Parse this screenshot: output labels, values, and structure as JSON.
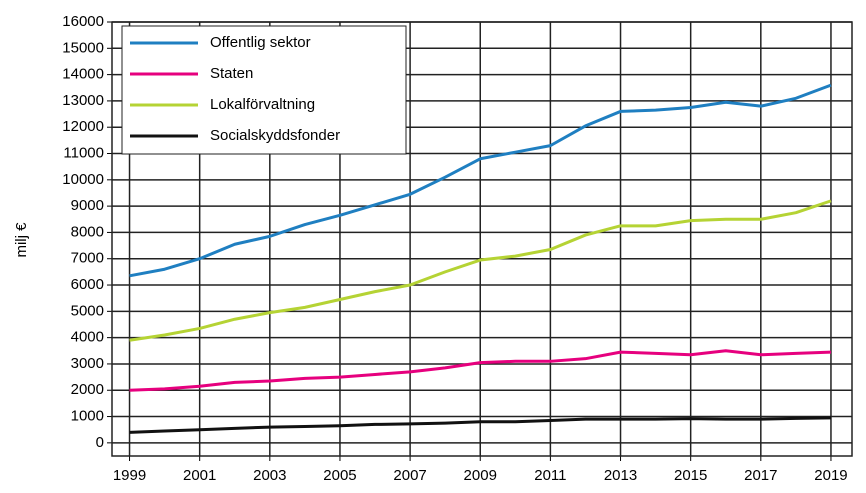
{
  "chart_data": {
    "type": "line",
    "y_label": "milj €",
    "x": [
      1999,
      2000,
      2001,
      2002,
      2003,
      2004,
      2005,
      2006,
      2007,
      2008,
      2009,
      2010,
      2011,
      2012,
      2013,
      2014,
      2015,
      2016,
      2017,
      2018,
      2019
    ],
    "series": [
      {
        "name": "Offentlig sektor",
        "color": "#1f7fc1",
        "values": [
          6350,
          6600,
          7000,
          7550,
          7850,
          8300,
          8650,
          9050,
          9450,
          10100,
          10800,
          11050,
          11300,
          12050,
          12600,
          12650,
          12750,
          12950,
          12800,
          13100,
          13600
        ]
      },
      {
        "name": "Staten",
        "color": "#e6007e",
        "values": [
          2000,
          2050,
          2150,
          2300,
          2350,
          2450,
          2500,
          2600,
          2700,
          2850,
          3050,
          3100,
          3100,
          3200,
          3450,
          3400,
          3350,
          3500,
          3350,
          3400,
          3450
        ]
      },
      {
        "name": "Lokalförvaltning",
        "color": "#b5d334",
        "values": [
          3900,
          4100,
          4350,
          4700,
          4950,
          5150,
          5450,
          5750,
          6000,
          6500,
          6950,
          7100,
          7350,
          7900,
          8250,
          8250,
          8450,
          8500,
          8500,
          8750,
          9200
        ]
      },
      {
        "name": "Socialskyddsfonder",
        "color": "#111111",
        "values": [
          400,
          450,
          500,
          550,
          600,
          620,
          650,
          700,
          720,
          750,
          800,
          800,
          850,
          900,
          900,
          900,
          920,
          900,
          900,
          930,
          950
        ]
      }
    ],
    "xlim": [
      1998.5,
      2019.6
    ],
    "xticks": [
      1999,
      2001,
      2003,
      2005,
      2007,
      2009,
      2011,
      2013,
      2015,
      2017,
      2019
    ],
    "ylim": [
      -500,
      16000
    ],
    "yticks": [
      0,
      1000,
      2000,
      3000,
      4000,
      5000,
      6000,
      7000,
      8000,
      9000,
      10000,
      11000,
      12000,
      13000,
      14000,
      15000,
      16000
    ],
    "grid": true,
    "legend": "upper left"
  }
}
